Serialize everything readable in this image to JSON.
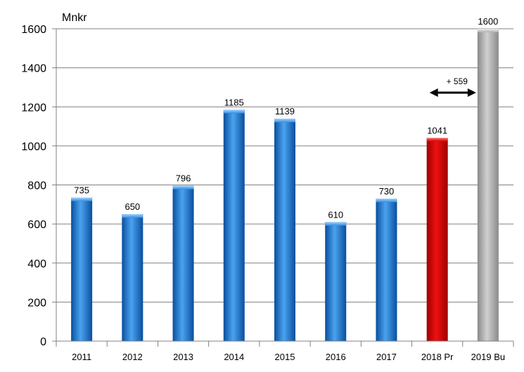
{
  "chart_data": {
    "type": "bar",
    "ylabel": "Mnkr",
    "ylim": [
      0,
      1600
    ],
    "yticks": [
      0,
      200,
      400,
      600,
      800,
      1000,
      1200,
      1400,
      1600
    ],
    "grid": "horizontal",
    "categories": [
      "2011",
      "2012",
      "2013",
      "2014",
      "2015",
      "2016",
      "2017",
      "2018 Pr",
      "2019 Bu"
    ],
    "values": [
      735,
      650,
      796,
      1185,
      1139,
      610,
      730,
      1041,
      1600
    ],
    "data_labels": [
      "735",
      "650",
      "796",
      "1185",
      "1139",
      "610",
      "730",
      "1041",
      "1600"
    ],
    "bar_colors": [
      "#1f77c8",
      "#1f77c8",
      "#1f77c8",
      "#1f77c8",
      "#1f77c8",
      "#1f77c8",
      "#1f77c8",
      "#d40000",
      "#a6a6a6"
    ],
    "annotation": {
      "text": "+ 559",
      "from_category": "2018 Pr",
      "to_category": "2019 Bu"
    }
  }
}
